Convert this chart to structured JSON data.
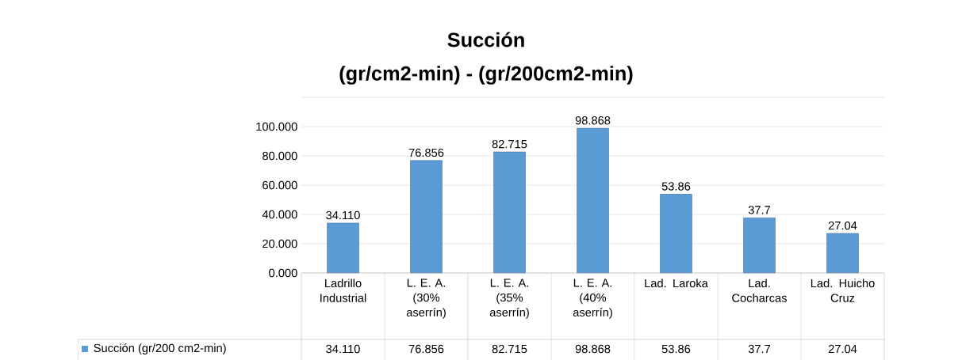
{
  "chart_data": {
    "type": "bar",
    "title": "Succión",
    "subtitle": "(gr/cm2-min) - (gr/200cm2-min)",
    "categories": [
      "Ladrillo Industrial",
      "L. E. A. (30% aserrín)",
      "L. E. A. (35% aserrín)",
      "L. E. A. (40% aserrín)",
      "Lad. Laroka",
      "Lad. Cocharcas",
      "Lad. Huicho Cruz"
    ],
    "series": [
      {
        "name": "Succión     (gr/200 cm2-min)",
        "color": "#5b9bd5",
        "values": [
          34.11,
          76.856,
          82.715,
          98.868,
          53.86,
          37.7,
          27.04
        ],
        "value_labels": [
          "34.110",
          "76.856",
          "82.715",
          "98.868",
          "53.86",
          "37.7",
          "27.04"
        ]
      }
    ],
    "ylim": [
      0,
      120
    ],
    "yticks": [
      {
        "value": 0,
        "label": "0.000"
      },
      {
        "value": 20,
        "label": "20.000"
      },
      {
        "value": 40,
        "label": "40.000"
      },
      {
        "value": 60,
        "label": "60.000"
      },
      {
        "value": 80,
        "label": "80.000"
      },
      {
        "value": 100,
        "label": "100.000"
      }
    ],
    "grid": "y",
    "legend": "bottom"
  }
}
